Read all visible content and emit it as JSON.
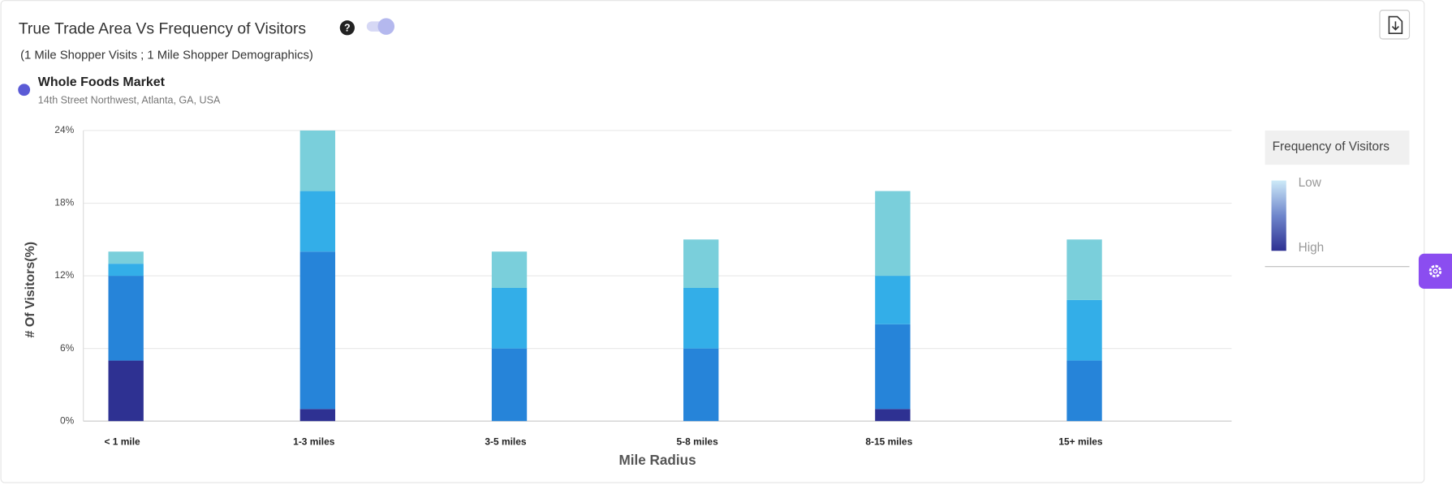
{
  "chart_data": {
    "type": "stacked-bar",
    "title": "True Trade Area Vs Frequency of Visitors",
    "subtitle": "(1 Mile Shopper Visits ; 1 Mile Shopper Demographics)",
    "store_name": "Whole Foods Market",
    "store_address": "14th Street Northwest, Atlanta, GA, USA",
    "x_label": "Mile Radius",
    "y_label": "# Of Visitors(%)",
    "legend_title": "Frequency of Visitors",
    "legend_low": "Low",
    "legend_high": "High",
    "categories": [
      "< 1 mile",
      "1-3 miles",
      "3-5 miles",
      "5-8 miles",
      "8-15 miles",
      "15+ miles"
    ],
    "series": [
      {
        "color": "#2e3192",
        "values": [
          5,
          1,
          0,
          0,
          1,
          0
        ]
      },
      {
        "color": "#2684d9",
        "values": [
          7,
          13,
          6,
          6,
          7,
          5
        ]
      },
      {
        "color": "#33aee8",
        "values": [
          1,
          5,
          5,
          5,
          4,
          5
        ]
      },
      {
        "color": "#7acfdb",
        "values": [
          1,
          5,
          3,
          4,
          7,
          5
        ]
      }
    ],
    "ylim": [
      0,
      24
    ],
    "yticks": [
      {
        "value": 0,
        "label": "0%"
      },
      {
        "value": 6,
        "label": "6%"
      },
      {
        "value": 12,
        "label": "12%"
      },
      {
        "value": 18,
        "label": "18%"
      },
      {
        "value": 24,
        "label": "24%"
      }
    ],
    "grid": true
  }
}
